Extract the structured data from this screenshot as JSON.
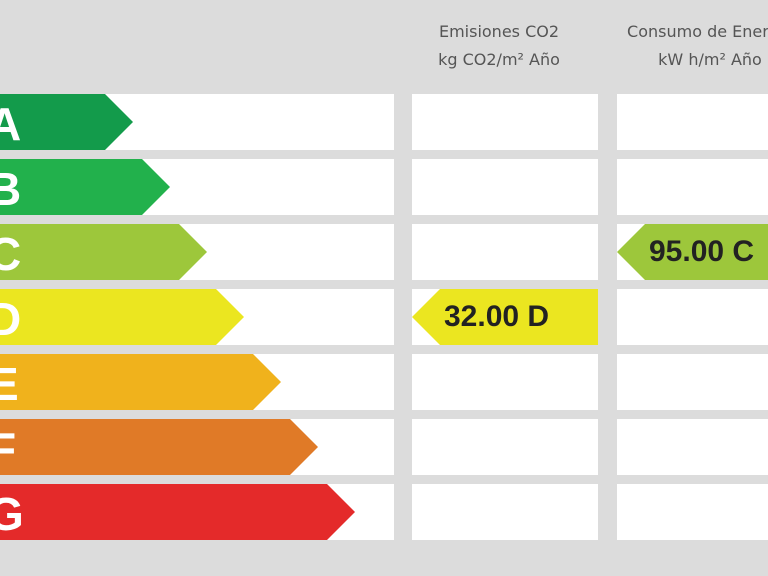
{
  "headers": {
    "emissions": {
      "line1": "Emisiones CO2",
      "line2": "kg CO2/m² Año"
    },
    "consumption": {
      "line1": "Consumo de Energía",
      "line2": "kW h/m² Año"
    }
  },
  "ratings": [
    {
      "letter": "A",
      "color": "#139b4b"
    },
    {
      "letter": "B",
      "color": "#22b14c"
    },
    {
      "letter": "C",
      "color": "#9dc73b"
    },
    {
      "letter": "D",
      "color": "#ebe620"
    },
    {
      "letter": "E",
      "color": "#f0b21c"
    },
    {
      "letter": "F",
      "color": "#e07a27"
    },
    {
      "letter": "G",
      "color": "#e42a2a"
    }
  ],
  "emissions_result": {
    "value": "32.00",
    "letter": "D",
    "label": "32.00 D",
    "color": "#ebe620"
  },
  "consumption_result": {
    "value": "95.00",
    "letter": "C",
    "label": "95.00 C",
    "color": "#9dc73b"
  }
}
